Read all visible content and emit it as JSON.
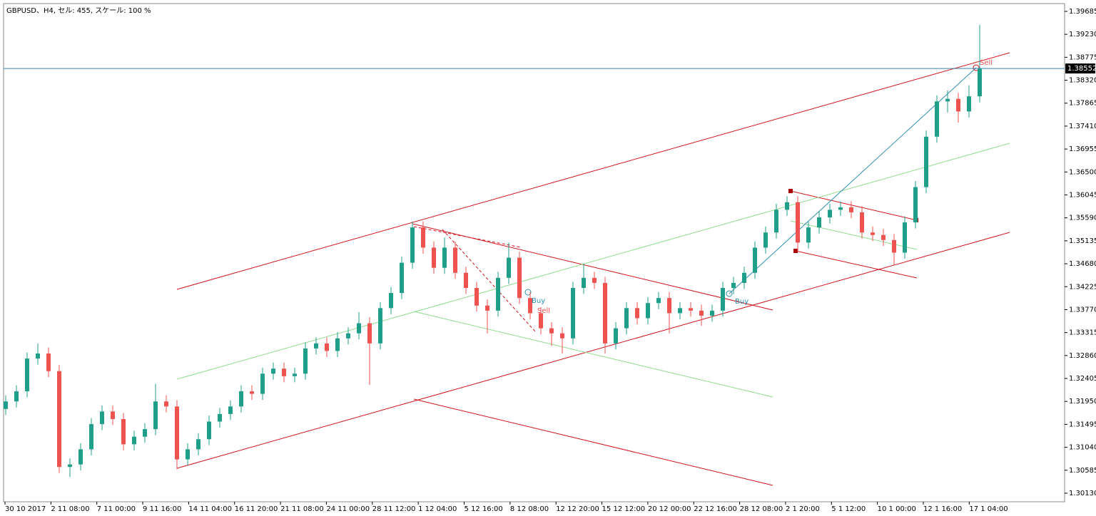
{
  "chart_data": {
    "type": "candlestick",
    "title": "GBPUSD、H4, セル: 455, スケール: 100 %",
    "bull_color": "#1f9e89",
    "bear_color": "#ef5350",
    "ylim": [
      1.2996,
      1.3984
    ],
    "yticks": [
      1.39685,
      {
        "value": 1.3923,
        "label": "1.39230"
      },
      1.38775,
      {
        "value": 1.3832,
        "label": "1.38320"
      },
      1.37865,
      {
        "value": 1.3741,
        "label": "1.37410"
      },
      1.36955,
      {
        "value": 1.365,
        "label": "1.36500"
      },
      1.36045,
      {
        "value": 1.3559,
        "label": "1.35590"
      },
      1.35135,
      {
        "value": 1.3468,
        "label": "1.34680"
      },
      1.34225,
      {
        "value": 1.3377,
        "label": "1.33770"
      },
      1.33315,
      {
        "value": 1.3286,
        "label": "1.32860"
      },
      1.32405,
      {
        "value": 1.3195,
        "label": "1.31950"
      },
      1.31495,
      {
        "value": 1.3104,
        "label": "1.31040"
      },
      1.30585,
      {
        "value": 1.3013,
        "label": "1.30130"
      }
    ],
    "xlabels": [
      "30 10 2017",
      "2 11 08:00",
      "7 11 00:00",
      "9 11 16:00",
      "14 11 04:00",
      "16 11 20:00",
      "21 11 08:00",
      "24 11 00:00",
      "28 11 12:00",
      "1 12 04:00",
      "5 12 16:00",
      "8 12 08:00",
      "12 12 20:00",
      "15 12 12:00",
      "20 12 00:00",
      "22 12 16:00",
      "28 12 08:00",
      "2 1 20:00",
      "5 1 12:00",
      "10 1 00:00",
      "12 1 16:00",
      "17 1 04:00"
    ],
    "current_price": 1.38552,
    "annotations": [
      "Buy",
      "Sell",
      "Buy",
      "Sell"
    ],
    "open": [
      1.318,
      1.3195,
      1.3215,
      1.328,
      1.329,
      1.3255,
      1.3065,
      1.307,
      1.31,
      1.315,
      1.3175,
      1.316,
      1.311,
      1.3125,
      1.314,
      1.3195,
      1.3185,
      1.308,
      1.31,
      1.312,
      1.3155,
      1.317,
      1.3185,
      1.3215,
      1.321,
      1.325,
      1.326,
      1.3245,
      1.325,
      1.33,
      1.331,
      1.3295,
      1.332,
      1.333,
      1.335,
      1.331,
      1.338,
      1.341,
      1.347,
      1.354,
      1.35,
      1.346,
      1.35,
      1.345,
      1.342,
      1.3385,
      1.3375,
      1.344,
      1.348,
      1.34,
      1.337,
      1.334,
      1.333,
      1.332,
      1.342,
      1.344,
      1.343,
      1.331,
      1.334,
      1.338,
      1.336,
      1.339,
      1.34,
      1.337,
      1.338,
      1.3375,
      1.3365,
      1.3375,
      1.342,
      1.343,
      1.345,
      1.35,
      1.353,
      1.3575,
      1.359,
      1.351,
      1.354,
      1.356,
      1.3575,
      1.358,
      1.357,
      1.353,
      1.3525,
      1.3515,
      1.349,
      1.355,
      1.362,
      1.372,
      1.379,
      1.3795,
      1.377,
      1.38
    ],
    "high": [
      1.3207,
      1.3227,
      1.3292,
      1.331,
      1.3302,
      1.3267,
      1.3082,
      1.3112,
      1.3162,
      1.3187,
      1.3187,
      1.3172,
      1.3137,
      1.3152,
      1.323,
      1.3207,
      1.3197,
      1.3112,
      1.3132,
      1.3167,
      1.3182,
      1.3197,
      1.3227,
      1.3227,
      1.3262,
      1.3272,
      1.3272,
      1.3262,
      1.3312,
      1.3322,
      1.3322,
      1.3332,
      1.3342,
      1.3372,
      1.3362,
      1.3392,
      1.3422,
      1.3482,
      1.3552,
      1.3552,
      1.3512,
      1.352,
      1.3512,
      1.3462,
      1.3432,
      1.3397,
      1.3452,
      1.351,
      1.3492,
      1.3412,
      1.3382,
      1.3352,
      1.3342,
      1.3432,
      1.3468,
      1.3452,
      1.3442,
      1.3352,
      1.3392,
      1.3392,
      1.3402,
      1.3412,
      1.3412,
      1.3392,
      1.3392,
      1.3387,
      1.3387,
      1.3432,
      1.3442,
      1.3462,
      1.3512,
      1.3542,
      1.3587,
      1.3602,
      1.3602,
      1.3552,
      1.3572,
      1.3587,
      1.3592,
      1.3592,
      1.3582,
      1.3542,
      1.3537,
      1.3527,
      1.3562,
      1.3632,
      1.3732,
      1.3802,
      1.3812,
      1.3807,
      1.3822,
      1.3942
    ],
    "low": [
      1.3168,
      1.3183,
      1.3203,
      1.3268,
      1.3243,
      1.3053,
      1.3045,
      1.3058,
      1.3088,
      1.3138,
      1.3148,
      1.3098,
      1.3098,
      1.3113,
      1.3128,
      1.3173,
      1.306,
      1.3068,
      1.3088,
      1.3108,
      1.3143,
      1.3158,
      1.3173,
      1.3198,
      1.3198,
      1.3238,
      1.3233,
      1.3233,
      1.3238,
      1.3288,
      1.3283,
      1.3283,
      1.3308,
      1.3318,
      1.3228,
      1.3298,
      1.3368,
      1.3398,
      1.3458,
      1.3488,
      1.3448,
      1.3448,
      1.3438,
      1.3408,
      1.3373,
      1.333,
      1.3363,
      1.3428,
      1.3388,
      1.3358,
      1.3328,
      1.3305,
      1.329,
      1.3308,
      1.3408,
      1.3418,
      1.329,
      1.3298,
      1.3328,
      1.3348,
      1.3348,
      1.3378,
      1.333,
      1.3358,
      1.3363,
      1.3345,
      1.3353,
      1.3363,
      1.3408,
      1.3418,
      1.3438,
      1.3488,
      1.3518,
      1.3563,
      1.3492,
      1.3498,
      1.3528,
      1.3548,
      1.3563,
      1.3558,
      1.3518,
      1.3513,
      1.3503,
      1.3465,
      1.3478,
      1.3538,
      1.3608,
      1.3708,
      1.3768,
      1.3748,
      1.3758,
      1.3788
    ],
    "close": [
      1.3195,
      1.3215,
      1.328,
      1.329,
      1.3255,
      1.3065,
      1.307,
      1.31,
      1.315,
      1.3175,
      1.316,
      1.311,
      1.3125,
      1.314,
      1.3195,
      1.3185,
      1.308,
      1.31,
      1.312,
      1.3155,
      1.317,
      1.3185,
      1.3215,
      1.321,
      1.325,
      1.326,
      1.3245,
      1.325,
      1.33,
      1.331,
      1.3295,
      1.332,
      1.333,
      1.335,
      1.331,
      1.338,
      1.341,
      1.347,
      1.354,
      1.35,
      1.346,
      1.35,
      1.345,
      1.342,
      1.3385,
      1.3375,
      1.344,
      1.348,
      1.34,
      1.337,
      1.334,
      1.333,
      1.332,
      1.342,
      1.344,
      1.343,
      1.331,
      1.334,
      1.338,
      1.336,
      1.339,
      1.34,
      1.337,
      1.338,
      1.3375,
      1.3365,
      1.3375,
      1.342,
      1.343,
      1.345,
      1.35,
      1.353,
      1.3575,
      1.359,
      1.351,
      1.354,
      1.356,
      1.3575,
      1.358,
      1.357,
      1.353,
      1.3525,
      1.3515,
      1.349,
      1.355,
      1.362,
      1.372,
      1.379,
      1.3795,
      1.377,
      1.38,
      1.3855
    ]
  }
}
